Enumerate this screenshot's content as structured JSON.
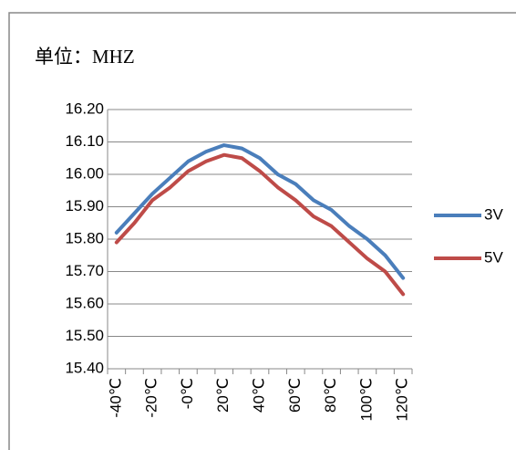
{
  "chart_data": {
    "type": "line",
    "subtitle": "单位：MHZ",
    "categories": [
      "-40℃",
      null,
      "-20℃",
      null,
      "-0℃",
      null,
      "20℃",
      null,
      "40℃",
      null,
      "60℃",
      null,
      "80℃",
      null,
      "100℃",
      null,
      "120℃"
    ],
    "series": [
      {
        "name": "3V",
        "color": "#4a7ebb",
        "values": [
          15.82,
          15.88,
          15.94,
          15.99,
          16.04,
          16.07,
          16.09,
          16.08,
          16.05,
          16.0,
          15.97,
          15.92,
          15.89,
          15.84,
          15.8,
          15.75,
          15.68
        ]
      },
      {
        "name": "5V",
        "color": "#be4b48",
        "values": [
          15.79,
          15.85,
          15.92,
          15.96,
          16.01,
          16.04,
          16.06,
          16.05,
          16.01,
          15.96,
          15.92,
          15.87,
          15.84,
          15.79,
          15.74,
          15.7,
          15.63
        ]
      }
    ],
    "ylim": [
      15.4,
      16.2
    ],
    "yticks": [
      {
        "value": 15.4,
        "label": "15.40"
      },
      {
        "value": 15.5,
        "label": "15.50"
      },
      {
        "value": 15.6,
        "label": "15.60"
      },
      {
        "value": 15.7,
        "label": "15.70"
      },
      {
        "value": 15.8,
        "label": "15.80"
      },
      {
        "value": 15.9,
        "label": "15.90"
      },
      {
        "value": 16.0,
        "label": "16.00"
      },
      {
        "value": 16.1,
        "label": "16.10"
      },
      {
        "value": 16.2,
        "label": "16.20"
      }
    ],
    "grid": true,
    "legend": "right"
  }
}
